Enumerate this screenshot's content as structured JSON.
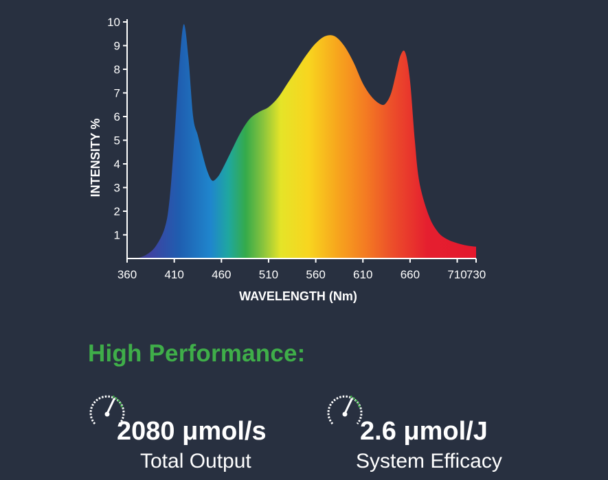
{
  "chart_data": {
    "type": "area",
    "xlabel": "WAVELENGTH (Nm)",
    "ylabel": "INTENSITY %",
    "xlim": [
      360,
      730
    ],
    "ylim": [
      0,
      10
    ],
    "x_ticks": [
      360,
      410,
      460,
      510,
      560,
      610,
      660,
      710,
      730
    ],
    "y_ticks": [
      1,
      2,
      3,
      4,
      5,
      6,
      7,
      8,
      9,
      10
    ],
    "grid": false,
    "fill": "visible-spectrum gradient",
    "x": [
      370,
      380,
      390,
      400,
      405,
      410,
      415,
      420,
      425,
      430,
      435,
      440,
      445,
      450,
      455,
      460,
      470,
      480,
      490,
      500,
      510,
      520,
      530,
      540,
      550,
      560,
      570,
      580,
      590,
      600,
      610,
      620,
      630,
      635,
      640,
      645,
      650,
      655,
      660,
      665,
      670,
      680,
      690,
      700,
      710,
      720,
      730
    ],
    "y": [
      0,
      0.15,
      0.5,
      1.3,
      2.5,
      5.0,
      8.0,
      9.9,
      8.5,
      6.0,
      5.2,
      4.4,
      3.7,
      3.3,
      3.4,
      3.7,
      4.5,
      5.3,
      5.9,
      6.2,
      6.4,
      6.8,
      7.4,
      8.0,
      8.6,
      9.1,
      9.4,
      9.4,
      9.0,
      8.3,
      7.4,
      6.8,
      6.5,
      6.6,
      7.0,
      7.8,
      8.6,
      8.7,
      7.5,
      5.0,
      3.2,
      1.8,
      1.1,
      0.8,
      0.65,
      0.55,
      0.5
    ]
  },
  "highlights": {
    "headline": "High Performance:",
    "total_output": {
      "value": "2080 μmol/s",
      "label": "Total Output",
      "icon": "gauge-icon"
    },
    "efficacy": {
      "value": "2.6 μmol/J",
      "label": "System Efficacy",
      "icon": "gauge-icon"
    }
  },
  "colors": {
    "background": "#283040",
    "headline": "#3fae49",
    "gauge_accent": "#3fae49",
    "text": "#ffffff"
  }
}
